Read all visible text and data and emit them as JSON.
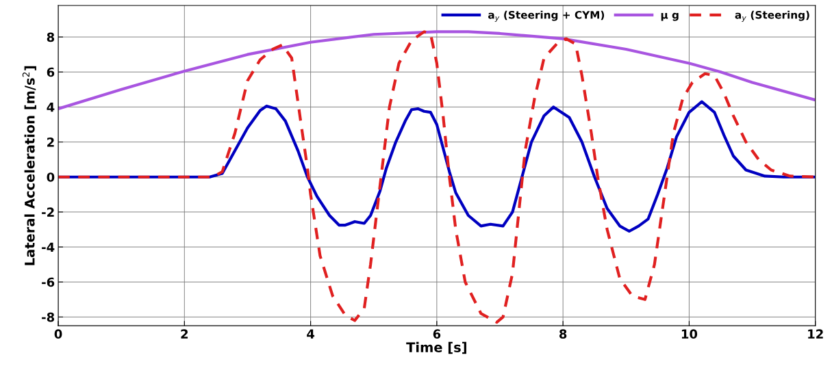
{
  "chart_data": {
    "type": "line",
    "xlabel": "Time [s]",
    "ylabel": "Lateral Acceleration [m/s$^{2}$]",
    "xlim": [
      0,
      12
    ],
    "xticks": [
      0,
      2,
      4,
      6,
      8,
      10,
      12
    ],
    "ylim": [
      -8.5,
      9.8
    ],
    "yticks": [
      -8,
      -6,
      -4,
      -2,
      0,
      2,
      4,
      6,
      8
    ],
    "grid": true,
    "legend": "top right",
    "marker": "none",
    "series": [
      {
        "name": "a$_{y}$ (Steering + CYM)",
        "color": "#0000c0",
        "line_style": "solid",
        "x": [
          0,
          2.4,
          2.6,
          2.8,
          3.0,
          3.2,
          3.3,
          3.45,
          3.6,
          3.8,
          3.95,
          4.1,
          4.3,
          4.45,
          4.55,
          4.7,
          4.85,
          4.95,
          5.1,
          5.2,
          5.35,
          5.5,
          5.6,
          5.7,
          5.8,
          5.9,
          6.0,
          6.2,
          6.3,
          6.5,
          6.7,
          6.85,
          7.05,
          7.2,
          7.35,
          7.5,
          7.7,
          7.85,
          8.1,
          8.3,
          8.5,
          8.7,
          8.9,
          9.05,
          9.2,
          9.35,
          9.5,
          9.65,
          9.8,
          10.0,
          10.2,
          10.4,
          10.55,
          10.7,
          10.9,
          11.2,
          11.5,
          12
        ],
        "values": [
          0,
          0,
          0.2,
          1.5,
          2.8,
          3.8,
          4.05,
          3.9,
          3.2,
          1.5,
          0,
          -1.1,
          -2.2,
          -2.75,
          -2.75,
          -2.55,
          -2.65,
          -2.2,
          -0.8,
          0.5,
          2.0,
          3.2,
          3.85,
          3.9,
          3.75,
          3.7,
          3.0,
          0.3,
          -0.9,
          -2.2,
          -2.8,
          -2.7,
          -2.8,
          -2.0,
          0,
          2.0,
          3.5,
          4.0,
          3.4,
          2.0,
          0,
          -1.8,
          -2.8,
          -3.1,
          -2.8,
          -2.4,
          -1.0,
          0.5,
          2.3,
          3.7,
          4.3,
          3.7,
          2.4,
          1.2,
          0.4,
          0.05,
          0,
          0
        ]
      },
      {
        "name": "μ g",
        "color": "#a855e0",
        "line_style": "solid",
        "x": [
          0,
          1,
          2,
          3,
          4,
          5,
          6,
          6.5,
          7,
          8,
          9,
          10,
          10.5,
          11,
          12
        ],
        "values": [
          3.9,
          5.0,
          6.05,
          7.0,
          7.7,
          8.15,
          8.3,
          8.3,
          8.2,
          7.9,
          7.3,
          6.5,
          6.0,
          5.4,
          4.4
        ]
      },
      {
        "name": "a$_{y}$ (Steering)",
        "color": "#e02020",
        "line_style": "dashed",
        "x": [
          0,
          2.45,
          2.6,
          2.8,
          3.0,
          3.2,
          3.4,
          3.55,
          3.7,
          3.85,
          3.95,
          4.0,
          4.15,
          4.35,
          4.55,
          4.7,
          4.85,
          4.95,
          5.05,
          5.15,
          5.25,
          5.4,
          5.6,
          5.8,
          5.9,
          6.0,
          6.1,
          6.2,
          6.3,
          6.45,
          6.7,
          6.95,
          7.05,
          7.2,
          7.3,
          7.4,
          7.55,
          7.7,
          7.9,
          8.05,
          8.2,
          8.3,
          8.45,
          8.55,
          8.7,
          8.9,
          9.1,
          9.3,
          9.45,
          9.55,
          9.65,
          9.75,
          9.9,
          10.05,
          10.25,
          10.4,
          10.55,
          10.7,
          10.9,
          11.1,
          11.3,
          11.6,
          12
        ],
        "values": [
          0,
          0,
          0.3,
          2.5,
          5.5,
          6.7,
          7.3,
          7.55,
          6.8,
          3.0,
          0.5,
          -1.0,
          -4.5,
          -6.8,
          -7.9,
          -8.2,
          -7.5,
          -5.0,
          -2.0,
          1.0,
          4.0,
          6.5,
          7.8,
          8.3,
          8.2,
          6.5,
          3.5,
          0,
          -3.0,
          -6.0,
          -7.8,
          -8.3,
          -8.0,
          -5.5,
          -2.0,
          1.5,
          4.5,
          6.8,
          7.6,
          7.9,
          7.6,
          5.8,
          2.5,
          0,
          -3.0,
          -5.8,
          -6.8,
          -7.0,
          -5.0,
          -2.5,
          0,
          2.5,
          4.5,
          5.4,
          5.9,
          5.8,
          4.8,
          3.5,
          2.0,
          1.0,
          0.4,
          0.05,
          0
        ]
      }
    ]
  }
}
